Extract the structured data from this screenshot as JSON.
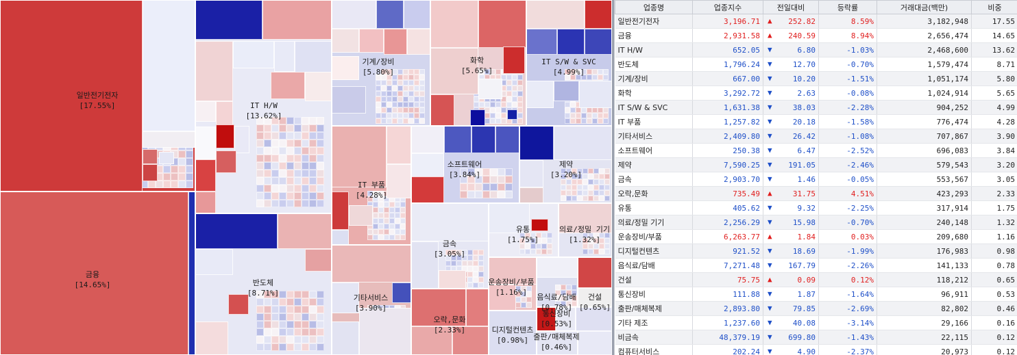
{
  "colors": {
    "up": "#e01e1e",
    "down": "#1e4fc8"
  },
  "chart_data": {
    "type": "treemap",
    "sectors": [
      {
        "name": "일반전기전자",
        "label": "[17.55%]",
        "weight": 17.55
      },
      {
        "name": "금융",
        "label": "[14.65%]",
        "weight": 14.65
      },
      {
        "name": "IT H/W",
        "label": "[13.62%]",
        "weight": 13.62
      },
      {
        "name": "반도체",
        "label": "[8.71%]",
        "weight": 8.71
      },
      {
        "name": "기계/장비",
        "label": "[5.80%]",
        "weight": 5.8
      },
      {
        "name": "화학",
        "label": "[5.65%]",
        "weight": 5.65
      },
      {
        "name": "IT S/W & SVC",
        "label": "[4.99%]",
        "weight": 4.99
      },
      {
        "name": "IT 부품",
        "label": "[4.28%]",
        "weight": 4.28
      },
      {
        "name": "소프트웨어",
        "label": "[3.84%]",
        "weight": 3.84
      },
      {
        "name": "제약",
        "label": "[3.20%]",
        "weight": 3.2
      },
      {
        "name": "금속",
        "label": "[3.05%]",
        "weight": 3.05
      },
      {
        "name": "기타서비스",
        "label": "[3.90%]",
        "weight": 3.9
      },
      {
        "name": "유통",
        "label": "[1.75%]",
        "weight": 1.75
      },
      {
        "name": "의료/정밀 기기",
        "label": "[1.32%]",
        "weight": 1.32
      },
      {
        "name": "운송장비/부품",
        "label": "[1.16%]",
        "weight": 1.16
      },
      {
        "name": "음식료/담배",
        "label": "[0.78%]",
        "weight": 0.78
      },
      {
        "name": "건설",
        "label": "[0.65%]",
        "weight": 0.65
      },
      {
        "name": "오락,문화",
        "label": "[2.33%]",
        "weight": 2.33
      },
      {
        "name": "디지털컨텐츠",
        "label": "[0.98%]",
        "weight": 0.98
      },
      {
        "name": "통신장비",
        "label": "[0.53%]",
        "weight": 0.53
      },
      {
        "name": "출판/매체복제",
        "label": "[0.46%]",
        "weight": 0.46
      }
    ]
  },
  "table": {
    "headers": [
      "업종명",
      "업종지수",
      "전일대비",
      "등락률",
      "거래대금(백만)",
      "비중"
    ],
    "rows": [
      {
        "name": "일반전기전자",
        "index": "3,196.71",
        "dir": "up",
        "change": "252.82",
        "rate": "8.59%",
        "amount": "3,182,948",
        "weight": "17.55"
      },
      {
        "name": "금융",
        "index": "2,931.58",
        "dir": "up",
        "change": "240.59",
        "rate": "8.94%",
        "amount": "2,656,474",
        "weight": "14.65"
      },
      {
        "name": "IT H/W",
        "index": "652.05",
        "dir": "down",
        "change": "6.80",
        "rate": "-1.03%",
        "amount": "2,468,600",
        "weight": "13.62"
      },
      {
        "name": "반도체",
        "index": "1,796.24",
        "dir": "down",
        "change": "12.70",
        "rate": "-0.70%",
        "amount": "1,579,474",
        "weight": "8.71"
      },
      {
        "name": "기계/장비",
        "index": "667.00",
        "dir": "down",
        "change": "10.20",
        "rate": "-1.51%",
        "amount": "1,051,174",
        "weight": "5.80"
      },
      {
        "name": "화학",
        "index": "3,292.72",
        "dir": "down",
        "change": "2.63",
        "rate": "-0.08%",
        "amount": "1,024,914",
        "weight": "5.65"
      },
      {
        "name": "IT S/W & SVC",
        "index": "1,631.38",
        "dir": "down",
        "change": "38.03",
        "rate": "-2.28%",
        "amount": "904,252",
        "weight": "4.99"
      },
      {
        "name": "IT 부품",
        "index": "1,257.82",
        "dir": "down",
        "change": "20.18",
        "rate": "-1.58%",
        "amount": "776,474",
        "weight": "4.28"
      },
      {
        "name": "기타서비스",
        "index": "2,409.80",
        "dir": "down",
        "change": "26.42",
        "rate": "-1.08%",
        "amount": "707,867",
        "weight": "3.90"
      },
      {
        "name": "소프트웨어",
        "index": "250.38",
        "dir": "down",
        "change": "6.47",
        "rate": "-2.52%",
        "amount": "696,083",
        "weight": "3.84"
      },
      {
        "name": "제약",
        "index": "7,590.25",
        "dir": "down",
        "change": "191.05",
        "rate": "-2.46%",
        "amount": "579,543",
        "weight": "3.20"
      },
      {
        "name": "금속",
        "index": "2,903.70",
        "dir": "down",
        "change": "1.46",
        "rate": "-0.05%",
        "amount": "553,567",
        "weight": "3.05"
      },
      {
        "name": "오락,문화",
        "index": "735.49",
        "dir": "up",
        "change": "31.75",
        "rate": "4.51%",
        "amount": "423,293",
        "weight": "2.33"
      },
      {
        "name": "유통",
        "index": "405.62",
        "dir": "down",
        "change": "9.32",
        "rate": "-2.25%",
        "amount": "317,914",
        "weight": "1.75"
      },
      {
        "name": "의료/정밀 기기",
        "index": "2,256.29",
        "dir": "down",
        "change": "15.98",
        "rate": "-0.70%",
        "amount": "240,148",
        "weight": "1.32"
      },
      {
        "name": "운송장비/부품",
        "index": "6,263.77",
        "dir": "up",
        "change": "1.84",
        "rate": "0.03%",
        "amount": "209,680",
        "weight": "1.16"
      },
      {
        "name": "디지털컨텐츠",
        "index": "921.52",
        "dir": "down",
        "change": "18.69",
        "rate": "-1.99%",
        "amount": "176,983",
        "weight": "0.98"
      },
      {
        "name": "음식료/담배",
        "index": "7,271.48",
        "dir": "down",
        "change": "167.79",
        "rate": "-2.26%",
        "amount": "141,133",
        "weight": "0.78"
      },
      {
        "name": "건설",
        "index": "75.75",
        "dir": "up",
        "change": "0.09",
        "rate": "0.12%",
        "amount": "118,212",
        "weight": "0.65"
      },
      {
        "name": "통신장비",
        "index": "111.88",
        "dir": "down",
        "change": "1.87",
        "rate": "-1.64%",
        "amount": "96,911",
        "weight": "0.53"
      },
      {
        "name": "출판/매체복제",
        "index": "2,893.80",
        "dir": "down",
        "change": "79.85",
        "rate": "-2.69%",
        "amount": "82,802",
        "weight": "0.46"
      },
      {
        "name": "기타 제조",
        "index": "1,237.60",
        "dir": "down",
        "change": "40.08",
        "rate": "-3.14%",
        "amount": "29,166",
        "weight": "0.16"
      },
      {
        "name": "비금속",
        "index": "48,379.19",
        "dir": "down",
        "change": "699.80",
        "rate": "-1.43%",
        "amount": "22,115",
        "weight": "0.12"
      },
      {
        "name": "컴퓨터서비스",
        "index": "202.24",
        "dir": "down",
        "change": "4.90",
        "rate": "-2.37%",
        "amount": "20,973",
        "weight": "0.12"
      }
    ]
  }
}
